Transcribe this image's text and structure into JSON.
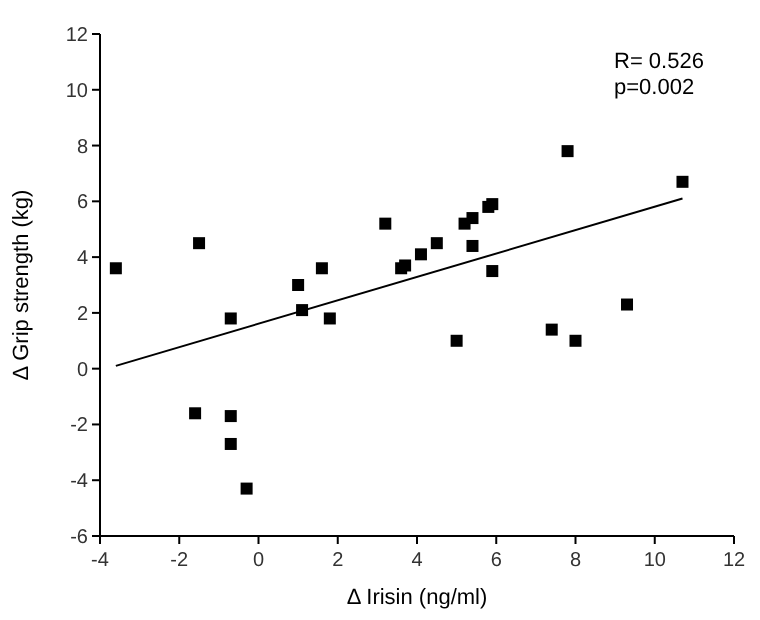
{
  "chart_data": {
    "type": "scatter",
    "xlabel": "Δ Irisin (ng/ml)",
    "ylabel": "Δ Grip strength (kg)",
    "xlim": [
      -4,
      12
    ],
    "xticks": [
      -4,
      -2,
      0,
      2,
      4,
      6,
      8,
      10,
      12
    ],
    "ylim": [
      -6,
      12
    ],
    "yticks": [
      -6,
      -4,
      -2,
      0,
      2,
      4,
      6,
      8,
      10,
      12
    ],
    "grid": false,
    "series": [
      {
        "marker": "square",
        "color": "#000000",
        "x": [
          -3.6,
          -1.5,
          -1.6,
          -0.7,
          -0.7,
          -0.3,
          -0.7,
          1.0,
          1.1,
          1.6,
          1.8,
          3.2,
          3.6,
          3.7,
          4.1,
          4.5,
          5.0,
          5.2,
          5.4,
          5.4,
          5.8,
          5.9,
          5.9,
          7.4,
          7.8,
          8.0,
          9.3,
          10.7
        ],
        "values": [
          3.6,
          4.5,
          -1.6,
          -1.7,
          -2.7,
          -4.3,
          1.8,
          3.0,
          2.1,
          3.6,
          1.8,
          5.2,
          3.6,
          3.7,
          4.1,
          4.5,
          1.0,
          5.2,
          5.4,
          4.4,
          5.8,
          5.9,
          3.5,
          1.4,
          7.8,
          1.0,
          2.3,
          6.7
        ]
      },
      {
        "type": "line",
        "color": "#000000",
        "x": [
          -3.6,
          10.7
        ],
        "values": [
          0.1,
          6.1
        ]
      }
    ],
    "annotations": [
      "R= 0.526",
      "p=0.002"
    ]
  }
}
